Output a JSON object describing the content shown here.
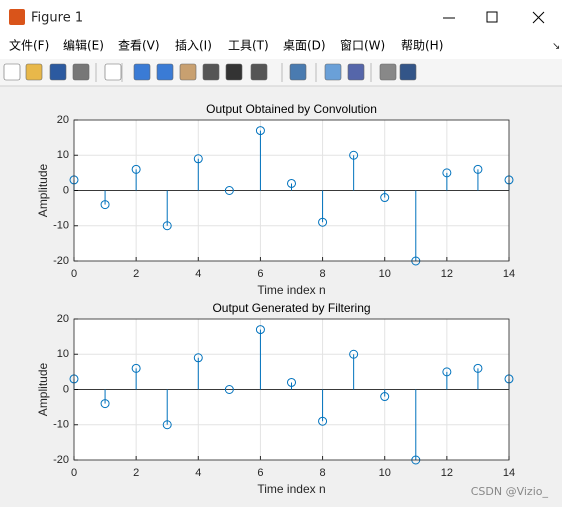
{
  "window": {
    "title": "Figure 1",
    "menu": [
      "文件(F)",
      "编辑(E)",
      "查看(V)",
      "插入(I)",
      "工具(T)",
      "桌面(D)",
      "窗口(W)",
      "帮助(H)"
    ]
  },
  "watermark": "CSDN @Vizio_",
  "chart_data": [
    {
      "type": "stem",
      "title": "Output Obtained by Convolution",
      "xlabel": "Time index n",
      "ylabel": "Amplitude",
      "x": [
        0,
        1,
        2,
        3,
        4,
        5,
        6,
        7,
        8,
        9,
        10,
        11,
        12,
        13,
        14
      ],
      "values": [
        3,
        -4,
        6,
        -10,
        9,
        0,
        17,
        2,
        -9,
        10,
        -2,
        -20,
        5,
        6,
        3
      ],
      "color": "#0072bd",
      "xlim": [
        0,
        14
      ],
      "ylim": [
        -20,
        20
      ],
      "xticks": [
        0,
        2,
        4,
        6,
        8,
        10,
        12,
        14
      ],
      "yticks": [
        -20,
        -10,
        0,
        10,
        20
      ],
      "grid": true
    },
    {
      "type": "stem",
      "title": "Output Generated by Filtering",
      "xlabel": "Time index n",
      "ylabel": "Amplitude",
      "x": [
        0,
        1,
        2,
        3,
        4,
        5,
        6,
        7,
        8,
        9,
        10,
        11,
        12,
        13,
        14
      ],
      "values": [
        3,
        -4,
        6,
        -10,
        9,
        0,
        17,
        2,
        -9,
        10,
        -2,
        -20,
        5,
        6,
        3
      ],
      "color": "#0072bd",
      "xlim": [
        0,
        14
      ],
      "ylim": [
        -20,
        20
      ],
      "xticks": [
        0,
        2,
        4,
        6,
        8,
        10,
        12,
        14
      ],
      "yticks": [
        -20,
        -10,
        0,
        10,
        20
      ],
      "grid": true
    }
  ]
}
